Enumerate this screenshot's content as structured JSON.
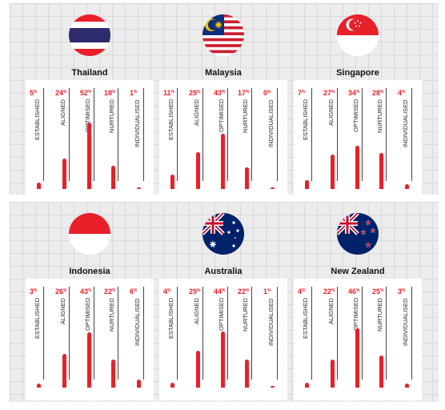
{
  "chart_data": [
    {
      "type": "bar",
      "title": "Thailand",
      "flag": "thailand-flag",
      "categories": [
        "ESTABLISHED",
        "ALIGNED",
        "OPTIMISED",
        "NURTURED",
        "INDIVIDUALISED"
      ],
      "values": [
        5,
        24,
        52,
        18,
        1
      ],
      "unit": "%",
      "ylim": [
        0,
        100
      ],
      "bar_color": "#e8202a"
    },
    {
      "type": "bar",
      "title": "Malaysia",
      "flag": "malaysia-flag",
      "categories": [
        "ESTABLISHED",
        "ALIGNED",
        "OPTIMISED",
        "NURTURED",
        "INDIVIDUALISED"
      ],
      "values": [
        11,
        29,
        43,
        17,
        0
      ],
      "unit": "%",
      "ylim": [
        0,
        100
      ],
      "bar_color": "#e8202a"
    },
    {
      "type": "bar",
      "title": "Singapore",
      "flag": "singapore-flag",
      "categories": [
        "ESTABLISHED",
        "ALIGNED",
        "OPTIMISED",
        "NURTURED",
        "INDIVIDUALISED"
      ],
      "values": [
        7,
        27,
        34,
        28,
        4
      ],
      "unit": "%",
      "ylim": [
        0,
        100
      ],
      "bar_color": "#e8202a"
    },
    {
      "type": "bar",
      "title": "Indonesia",
      "flag": "indonesia-flag",
      "categories": [
        "ESTABLISHED",
        "ALIGNED",
        "OPTIMISED",
        "NURTURED",
        "INDIVIDUALISED"
      ],
      "values": [
        3,
        26,
        43,
        22,
        6
      ],
      "unit": "%",
      "ylim": [
        0,
        100
      ],
      "bar_color": "#e8202a"
    },
    {
      "type": "bar",
      "title": "Australia",
      "flag": "australia-flag",
      "categories": [
        "ESTABLISHED",
        "ALIGNED",
        "OPTIMISED",
        "NURTURED",
        "INDIVIDUALISED"
      ],
      "values": [
        4,
        29,
        44,
        22,
        1
      ],
      "unit": "%",
      "ylim": [
        0,
        100
      ],
      "bar_color": "#e8202a"
    },
    {
      "type": "bar",
      "title": "New Zealand",
      "flag": "new-zealand-flag",
      "categories": [
        "ESTABLISHED",
        "ALIGNED",
        "OPTIMISED",
        "NURTURED",
        "INDIVIDUALISED"
      ],
      "values": [
        4,
        22,
        46,
        25,
        3
      ],
      "unit": "%",
      "ylim": [
        0,
        100
      ],
      "bar_color": "#e8202a"
    }
  ]
}
